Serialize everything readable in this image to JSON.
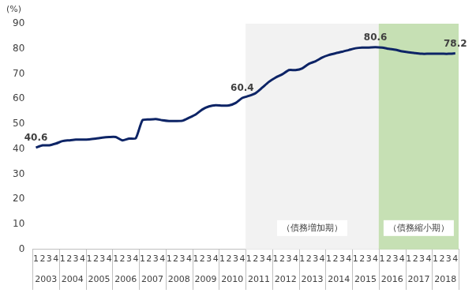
{
  "chart_data": {
    "type": "line",
    "y_label": "(%)",
    "categories": [
      "1",
      "2",
      "3",
      "4",
      "1",
      "2",
      "3",
      "4",
      "1",
      "2",
      "3",
      "4",
      "1",
      "2",
      "3",
      "4",
      "1",
      "2",
      "3",
      "4",
      "1",
      "2",
      "3",
      "4",
      "1",
      "2",
      "3",
      "4",
      "1",
      "2",
      "3",
      "4",
      "1",
      "2",
      "3",
      "4",
      "1",
      "2",
      "3",
      "4",
      "1",
      "2",
      "3",
      "4",
      "1",
      "2",
      "3",
      "4",
      "1",
      "2",
      "3",
      "4",
      "1",
      "2",
      "3",
      "4",
      "1",
      "2",
      "3",
      "4",
      "1",
      "2",
      "3",
      "4"
    ],
    "x_groups": [
      "2003",
      "2004",
      "2005",
      "2006",
      "2007",
      "2008",
      "2009",
      "2010",
      "2011",
      "2012",
      "2013",
      "2014",
      "2015",
      "2016",
      "2017",
      "2018"
    ],
    "values": [
      40.6,
      41.5,
      41.5,
      42.2,
      43.2,
      43.5,
      43.8,
      43.8,
      43.9,
      44.2,
      44.6,
      44.8,
      44.8,
      43.5,
      44.2,
      44.3,
      51.5,
      51.8,
      52.0,
      51.5,
      51.2,
      51.2,
      51.3,
      52.5,
      53.8,
      55.8,
      57.0,
      57.5,
      57.3,
      57.4,
      58.4,
      60.4,
      61.2,
      62.3,
      64.5,
      66.8,
      68.5,
      69.8,
      71.5,
      71.5,
      72.2,
      74.0,
      75.0,
      76.5,
      77.5,
      78.2,
      78.8,
      79.5,
      80.2,
      80.5,
      80.5,
      80.6,
      80.5,
      80.0,
      79.6,
      79.0,
      78.6,
      78.3,
      78.0,
      78.0,
      78.0,
      78.0,
      78.0,
      78.2
    ],
    "value_labels": [
      "40.6",
      null,
      null,
      null,
      null,
      null,
      null,
      null,
      null,
      null,
      null,
      null,
      null,
      null,
      null,
      null,
      null,
      null,
      null,
      null,
      null,
      null,
      null,
      null,
      null,
      null,
      null,
      null,
      null,
      null,
      null,
      "60.4",
      null,
      null,
      null,
      null,
      null,
      null,
      null,
      null,
      null,
      null,
      null,
      null,
      null,
      null,
      null,
      null,
      null,
      null,
      null,
      "80.6",
      null,
      null,
      null,
      null,
      null,
      null,
      null,
      null,
      null,
      null,
      null,
      "78.2"
    ],
    "color": "#0d2466",
    "ylim": [
      0,
      90
    ],
    "yticks": [
      0,
      10,
      20,
      30,
      40,
      50,
      60,
      70,
      80,
      90
    ],
    "grid": false,
    "shaded_regions": [
      {
        "from": "2011",
        "to": "2015",
        "label": "（債務増加期）",
        "color": "#f2f2f2"
      },
      {
        "from": "2016",
        "to": "2018",
        "label": "（債務縮小期）",
        "color": "#c6e0b4"
      }
    ]
  }
}
